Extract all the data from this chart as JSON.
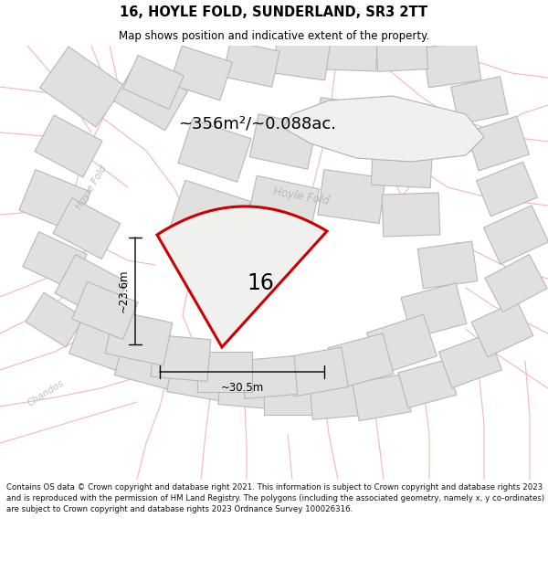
{
  "title": "16, HOYLE FOLD, SUNDERLAND, SR3 2TT",
  "subtitle": "Map shows position and indicative extent of the property.",
  "area_text": "~356m²/~0.088ac.",
  "label_16": "16",
  "dim_height": "~23.6m",
  "dim_width": "~30.5m",
  "road_label_hoyle_fold_upper": "Hoyle Fold",
  "road_label_hoyle_fold_lower": "Hoyle Fold",
  "chandos_label": "Chandos",
  "footer": "Contains OS data © Crown copyright and database right 2021. This information is subject to Crown copyright and database rights 2023 and is reproduced with the permission of HM Land Registry. The polygons (including the associated geometry, namely x, y co-ordinates) are subject to Crown copyright and database rights 2023 Ordnance Survey 100026316.",
  "map_bg": "#f8f8f6",
  "building_grey_face": "#e0e0de",
  "building_grey_edge": "#b8b8b6",
  "road_face": "#f8f8f6",
  "road_outline_pink": "#f0b8b8",
  "building_pink_face": "#fde8e8",
  "building_pink_edge": "#f0b0b0",
  "highlight_color": "#cc0000",
  "text_color": "#000000",
  "road_text_color": "#b8b8b8",
  "chandos_color": "#c0c0c0",
  "header_bg": "#ffffff",
  "footer_bg": "#ffffff"
}
